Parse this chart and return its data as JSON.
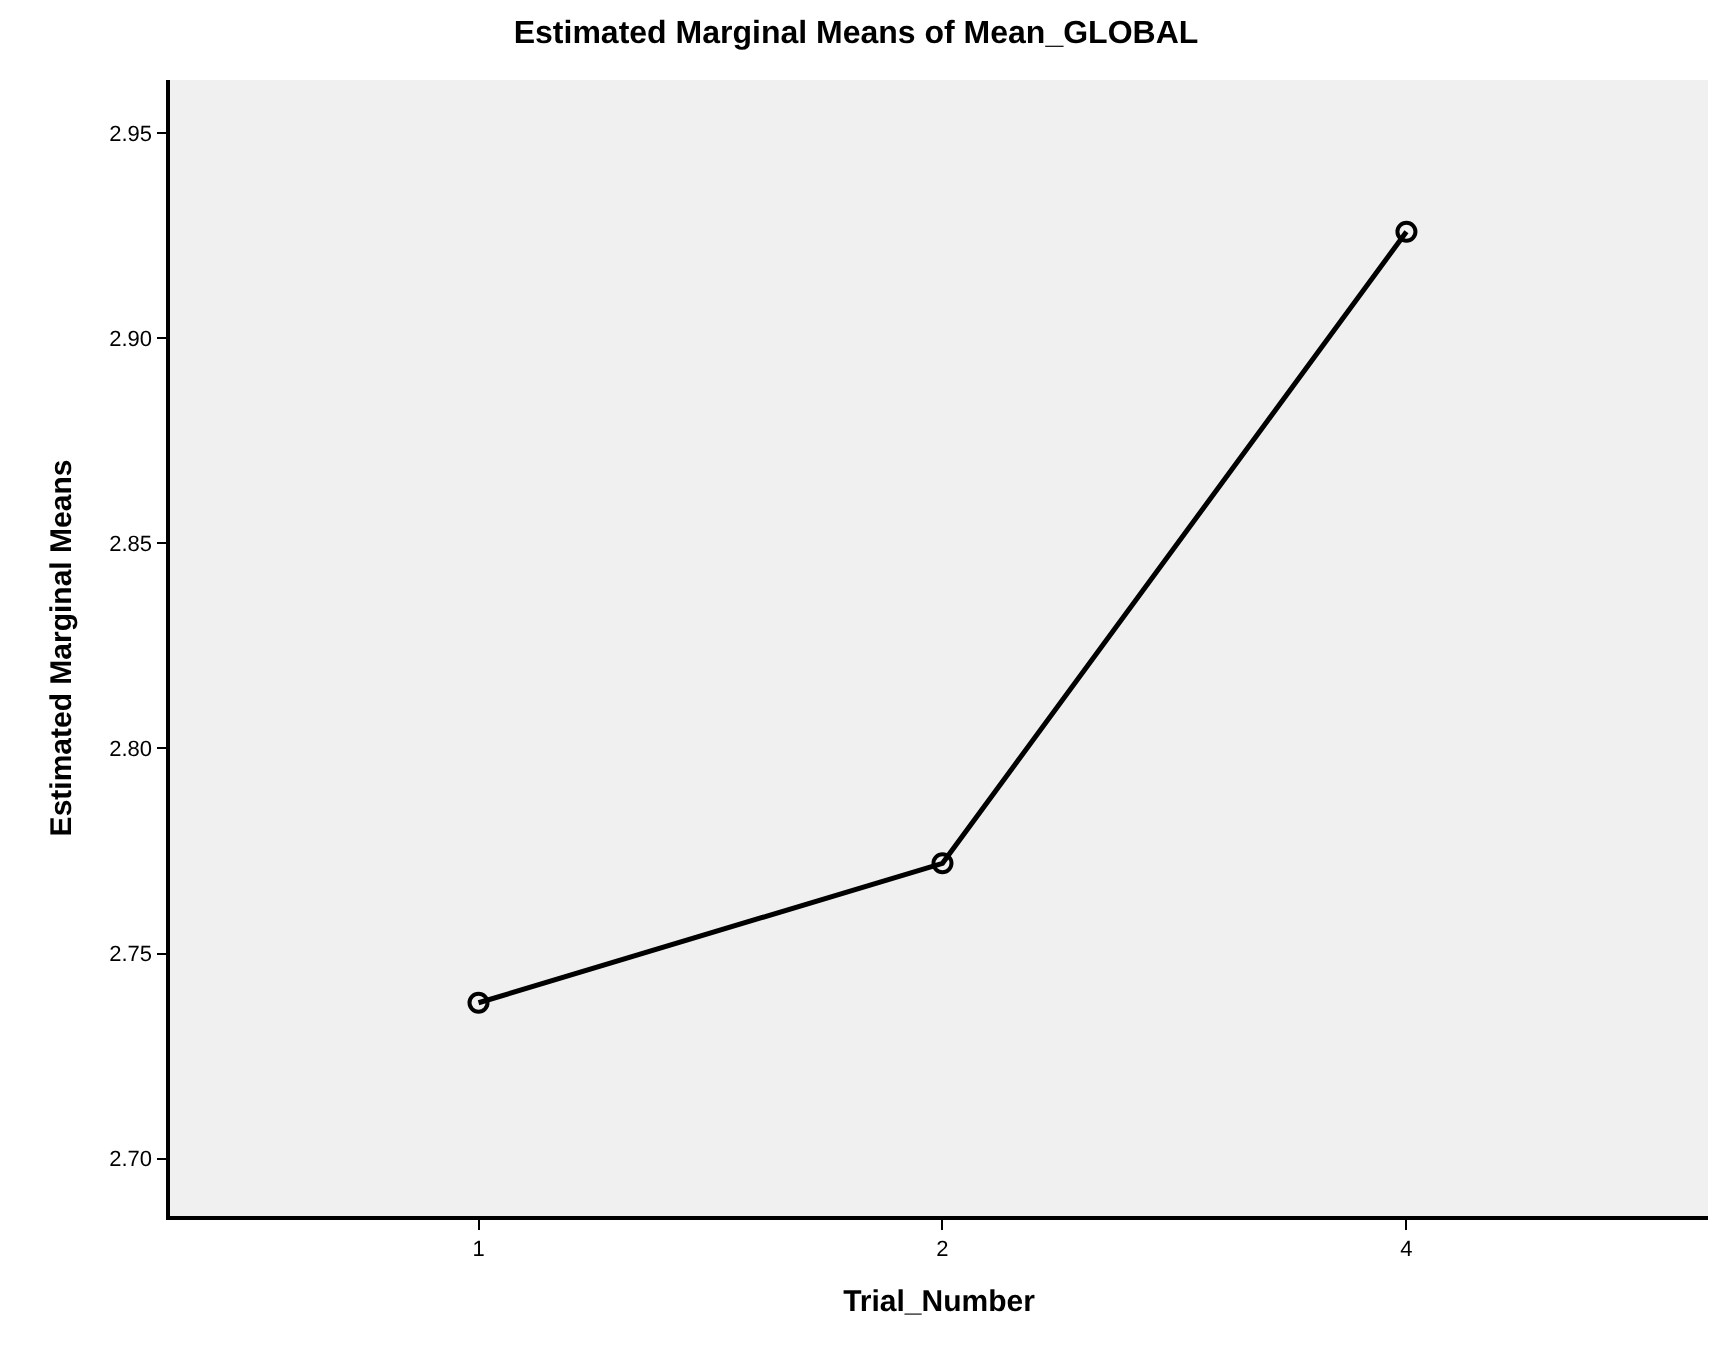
{
  "chart_data": {
    "type": "line",
    "title": "Estimated Marginal Means of Mean_GLOBAL",
    "xlabel": "Trial_Number",
    "ylabel": "Estimated Marginal Means",
    "categories": [
      "1",
      "2",
      "4"
    ],
    "series": [
      {
        "color": "#000000",
        "values": [
          2.738,
          2.772,
          2.926
        ]
      }
    ],
    "ylim": [
      2.686,
      2.963
    ],
    "yticks": [
      {
        "value": 2.7,
        "label": "2.70"
      },
      {
        "value": 2.75,
        "label": "2.75"
      },
      {
        "value": 2.8,
        "label": "2.80"
      },
      {
        "value": 2.85,
        "label": "2.85"
      },
      {
        "value": 2.9,
        "label": "2.90"
      },
      {
        "value": 2.95,
        "label": "2.95"
      }
    ],
    "marker": "circle",
    "line_style": "solid"
  }
}
